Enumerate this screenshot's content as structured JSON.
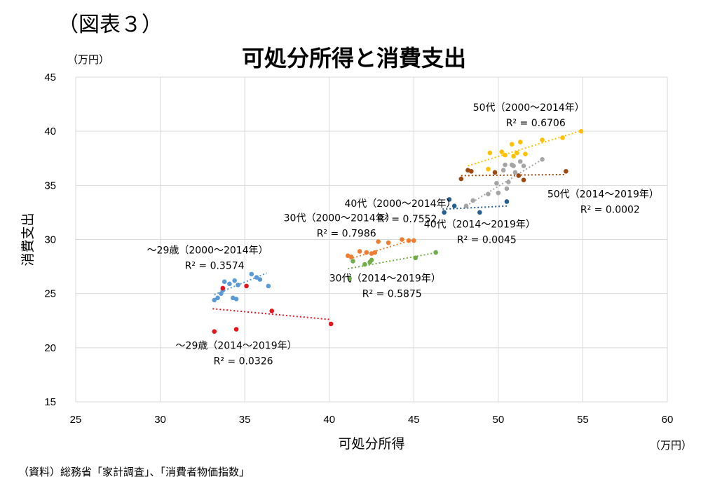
{
  "header": {
    "figure_label": "（図表３）",
    "y_unit": "（万円）",
    "x_unit": "（万円）",
    "source": "（資料）総務省「家計調査」、「消費者物価指数」"
  },
  "chart_data": {
    "type": "scatter",
    "title": "可処分所得と消費支出",
    "xlabel": "可処分所得",
    "ylabel": "消費支出",
    "xlim": [
      25,
      60
    ],
    "ylim": [
      15,
      45
    ],
    "xticks": [
      25,
      30,
      35,
      40,
      45,
      50,
      55,
      60
    ],
    "yticks": [
      15,
      20,
      25,
      30,
      35,
      40,
      45
    ],
    "grid": true,
    "series": [
      {
        "color": "#5b9bd5",
        "points": [
          [
            33.2,
            24.4
          ],
          [
            33.4,
            24.6
          ],
          [
            33.6,
            25.0
          ],
          [
            33.7,
            25.3
          ],
          [
            33.8,
            26.1
          ],
          [
            34.1,
            25.9
          ],
          [
            34.3,
            24.6
          ],
          [
            34.4,
            26.2
          ],
          [
            34.5,
            24.5
          ],
          [
            34.6,
            25.8
          ],
          [
            35.4,
            26.8
          ],
          [
            35.7,
            26.5
          ],
          [
            35.9,
            26.3
          ],
          [
            36.4,
            25.7
          ]
        ],
        "trend": [
          [
            33.2,
            24.9
          ],
          [
            36.3,
            26.9
          ]
        ],
        "annotation": {
          "name": "～29歳（2000～2014年）",
          "r2": "R² = 0.3574",
          "x": 32.8,
          "y": 28.7
        }
      },
      {
        "color": "#e8141c",
        "points": [
          [
            33.2,
            21.5
          ],
          [
            33.7,
            25.5
          ],
          [
            34.5,
            21.7
          ],
          [
            35.1,
            25.7
          ],
          [
            36.6,
            23.4
          ],
          [
            40.1,
            22.2
          ]
        ],
        "trend": [
          [
            33.1,
            23.6
          ],
          [
            40.1,
            22.6
          ]
        ],
        "annotation": {
          "name": "～29歳（2014～2019年）",
          "r2": "R² = 0.0326",
          "x": 34.5,
          "y": 19.9
        }
      },
      {
        "color": "#ed7d31",
        "points": [
          [
            41.1,
            28.5
          ],
          [
            41.3,
            28.4
          ],
          [
            41.8,
            28.9
          ],
          [
            42.2,
            28.8
          ],
          [
            42.5,
            28.7
          ],
          [
            42.7,
            28.8
          ],
          [
            42.9,
            29.8
          ],
          [
            43.5,
            29.7
          ],
          [
            44.3,
            30.0
          ],
          [
            44.7,
            29.9
          ],
          [
            45.0,
            29.9
          ]
        ],
        "trend": [
          [
            41.2,
            28.2
          ],
          [
            45.0,
            30.0
          ]
        ],
        "annotation": {
          "name": "30代（2000～2014年）",
          "r2": "R² = 0.7986",
          "x": 40.6,
          "y": 31.7
        }
      },
      {
        "color": "#70ad47",
        "points": [
          [
            41.2,
            26.4
          ],
          [
            41.4,
            28.0
          ],
          [
            42.1,
            27.7
          ],
          [
            42.4,
            27.9
          ],
          [
            42.5,
            28.1
          ],
          [
            45.1,
            28.3
          ],
          [
            46.3,
            28.8
          ]
        ],
        "trend": [
          [
            41.1,
            27.3
          ],
          [
            46.4,
            28.8
          ]
        ],
        "annotation": {
          "name": "30代（2014～2019年）",
          "r2": "R² = 0.5875",
          "x": 43.3,
          "y": 26.1
        }
      },
      {
        "color": "#ffc000",
        "points": [
          [
            49.5,
            38.0
          ],
          [
            50.2,
            38.1
          ],
          [
            50.4,
            37.8
          ],
          [
            50.8,
            38.8
          ],
          [
            50.9,
            37.7
          ],
          [
            51.1,
            38.0
          ],
          [
            51.3,
            39.0
          ],
          [
            51.6,
            37.9
          ],
          [
            52.6,
            39.2
          ],
          [
            53.8,
            39.4
          ],
          [
            54.9,
            40.0
          ],
          [
            49.4,
            36.5
          ]
        ],
        "trend": [
          [
            48.2,
            36.8
          ],
          [
            54.8,
            40.0
          ]
        ],
        "annotation": {
          "name": "50代（2000～2014年）",
          "r2": "R² = 0.6706",
          "x": 51.8,
          "y": 41.9
        }
      },
      {
        "color": "#a5a5a5",
        "points": [
          [
            48.1,
            33.1
          ],
          [
            48.5,
            33.6
          ],
          [
            49.4,
            34.2
          ],
          [
            49.9,
            35.2
          ],
          [
            50.0,
            34.3
          ],
          [
            50.3,
            36.4
          ],
          [
            50.4,
            36.9
          ],
          [
            50.5,
            34.7
          ],
          [
            50.6,
            35.3
          ],
          [
            50.8,
            36.9
          ],
          [
            50.9,
            36.8
          ],
          [
            51.0,
            36.2
          ],
          [
            51.3,
            37.2
          ],
          [
            51.5,
            36.8
          ],
          [
            52.6,
            37.4
          ]
        ],
        "trend": [
          [
            48.1,
            33.1
          ],
          [
            52.6,
            37.4
          ]
        ],
        "annotation": null
      },
      {
        "color": "#9e480e",
        "points": [
          [
            47.8,
            35.6
          ],
          [
            48.2,
            36.4
          ],
          [
            48.4,
            36.3
          ],
          [
            49.8,
            36.2
          ],
          [
            51.2,
            35.9
          ],
          [
            51.5,
            35.5
          ],
          [
            54.0,
            36.3
          ]
        ],
        "trend": [
          [
            47.8,
            35.9
          ],
          [
            54.0,
            36.0
          ]
        ],
        "annotation": {
          "name": "50代（2014～2019年）",
          "r2": "R² = 0.0002",
          "x": 56.2,
          "y": 33.9
        }
      },
      {
        "color": "#7f7f7f",
        "points": [],
        "trend": null,
        "annotation": {
          "name": "40代（2000～2014年）",
          "r2": "R² = 0.7552",
          "x": 44.2,
          "y": 33.0
        }
      },
      {
        "color": "#255e91",
        "points": [
          [
            46.8,
            32.5
          ],
          [
            47.1,
            33.7
          ],
          [
            47.4,
            33.1
          ],
          [
            48.9,
            32.5
          ],
          [
            50.5,
            33.5
          ]
        ],
        "trend": [
          [
            46.7,
            32.8
          ],
          [
            50.6,
            33.1
          ]
        ],
        "annotation": {
          "name": "40代（2014～2019年）",
          "r2": "R² = 0.0045",
          "x": 48.9,
          "y": 31.1
        }
      }
    ]
  }
}
